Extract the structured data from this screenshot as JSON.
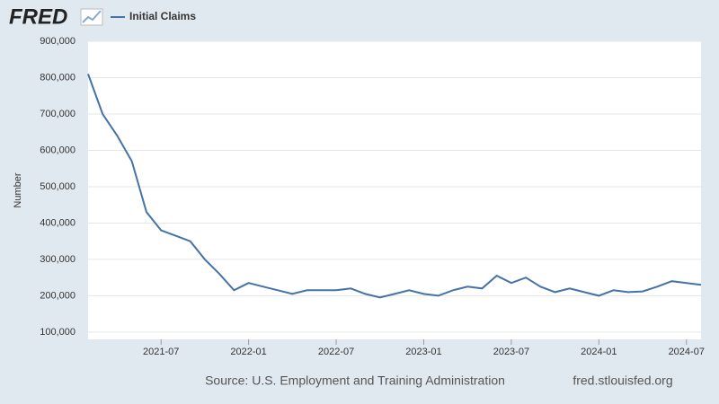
{
  "brand": "FRED",
  "chart_data": {
    "type": "line",
    "y_label": "Number",
    "source": "Source: U.S. Employment and Training Administration",
    "url": "fred.stlouisfed.org",
    "x": [
      "2021-02",
      "2021-03",
      "2021-04",
      "2021-05",
      "2021-06",
      "2021-07",
      "2021-08",
      "2021-09",
      "2021-10",
      "2021-11",
      "2021-12",
      "2022-01",
      "2022-02",
      "2022-03",
      "2022-04",
      "2022-05",
      "2022-06",
      "2022-07",
      "2022-08",
      "2022-09",
      "2022-10",
      "2022-11",
      "2022-12",
      "2023-01",
      "2023-02",
      "2023-03",
      "2023-04",
      "2023-05",
      "2023-06",
      "2023-07",
      "2023-08",
      "2023-09",
      "2023-10",
      "2023-11",
      "2023-12",
      "2024-01",
      "2024-02",
      "2024-03",
      "2024-04",
      "2024-05",
      "2024-06",
      "2024-07",
      "2024-08"
    ],
    "series": [
      {
        "name": "Initial Claims",
        "color": "#4572a7",
        "values": [
          810000,
          700000,
          640000,
          570000,
          430000,
          380000,
          365000,
          350000,
          300000,
          260000,
          215000,
          235000,
          225000,
          215000,
          205000,
          215000,
          215000,
          215000,
          220000,
          205000,
          195000,
          205000,
          215000,
          205000,
          200000,
          215000,
          225000,
          220000,
          255000,
          235000,
          250000,
          225000,
          210000,
          220000,
          210000,
          200000,
          215000,
          210000,
          212000,
          225000,
          240000,
          235000,
          230000
        ]
      }
    ],
    "xlim": [
      "2021-02",
      "2024-08"
    ],
    "xticks": [
      "2021-07",
      "2022-01",
      "2022-07",
      "2023-01",
      "2023-07",
      "2024-01",
      "2024-07"
    ],
    "ylim": [
      80000,
      900000
    ],
    "yticks": [
      {
        "value": 100000,
        "label": "100,000"
      },
      {
        "value": 200000,
        "label": "200,000"
      },
      {
        "value": 300000,
        "label": "300,000"
      },
      {
        "value": 400000,
        "label": "400,000"
      },
      {
        "value": 500000,
        "label": "500,000"
      },
      {
        "value": 600000,
        "label": "600,000"
      },
      {
        "value": 700000,
        "label": "700,000"
      },
      {
        "value": 800000,
        "label": "800,000"
      },
      {
        "value": 900000,
        "label": "900,000"
      }
    ],
    "grid": true
  }
}
